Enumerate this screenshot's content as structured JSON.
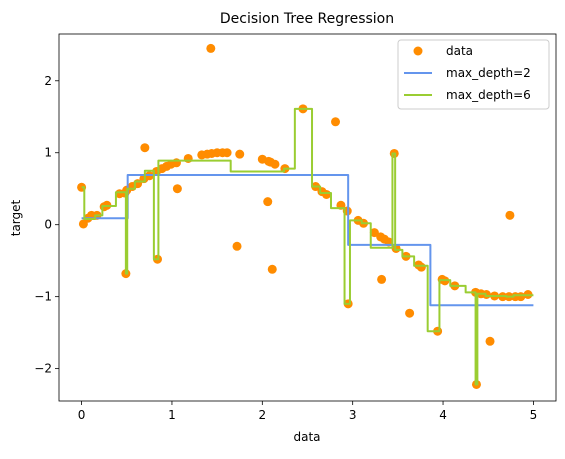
{
  "chart_data": {
    "type": "scatter",
    "title": "Decision Tree Regression",
    "xlabel": "data",
    "ylabel": "target",
    "xlim": [
      -0.25,
      5.25
    ],
    "ylim": [
      -2.45,
      2.65
    ],
    "xticks": [
      0,
      1,
      2,
      3,
      4,
      5
    ],
    "yticks": [
      -2,
      -1,
      0,
      1,
      2
    ],
    "grid": false,
    "legend_position": "top-right",
    "colors": {
      "data": "#ff8c00",
      "depth2": "#6495ed",
      "depth6": "#9acd32"
    },
    "legend": [
      "data",
      "max_depth=2",
      "max_depth=6"
    ],
    "scatter": {
      "name": "data",
      "points": [
        [
          0.0,
          0.52
        ],
        [
          0.02,
          0.01
        ],
        [
          0.07,
          0.09
        ],
        [
          0.11,
          0.13
        ],
        [
          0.17,
          0.13
        ],
        [
          0.25,
          0.25
        ],
        [
          0.28,
          0.27
        ],
        [
          0.42,
          0.43
        ],
        [
          0.48,
          0.44
        ],
        [
          0.49,
          -0.68
        ],
        [
          0.5,
          0.48
        ],
        [
          0.56,
          0.53
        ],
        [
          0.62,
          0.57
        ],
        [
          0.69,
          0.64
        ],
        [
          0.7,
          1.07
        ],
        [
          0.75,
          0.68
        ],
        [
          0.83,
          0.74
        ],
        [
          0.84,
          -0.48
        ],
        [
          0.89,
          0.78
        ],
        [
          0.94,
          0.81
        ],
        [
          0.99,
          0.84
        ],
        [
          1.05,
          0.86
        ],
        [
          1.06,
          0.5
        ],
        [
          1.18,
          0.92
        ],
        [
          1.33,
          0.97
        ],
        [
          1.39,
          0.98
        ],
        [
          1.43,
          2.45
        ],
        [
          1.44,
          0.99
        ],
        [
          1.5,
          1.0
        ],
        [
          1.56,
          1.0
        ],
        [
          1.61,
          1.0
        ],
        [
          1.72,
          -0.3
        ],
        [
          1.75,
          0.98
        ],
        [
          2.0,
          0.91
        ],
        [
          2.06,
          0.32
        ],
        [
          2.07,
          0.88
        ],
        [
          2.09,
          0.87
        ],
        [
          2.11,
          -0.62
        ],
        [
          2.14,
          0.84
        ],
        [
          2.25,
          0.78
        ],
        [
          2.45,
          1.61
        ],
        [
          2.59,
          0.53
        ],
        [
          2.66,
          0.46
        ],
        [
          2.71,
          0.42
        ],
        [
          2.81,
          1.43
        ],
        [
          2.87,
          0.27
        ],
        [
          2.94,
          0.19
        ],
        [
          2.95,
          -1.1
        ],
        [
          3.06,
          0.06
        ],
        [
          3.12,
          0.02
        ],
        [
          3.24,
          -0.11
        ],
        [
          3.31,
          -0.17
        ],
        [
          3.32,
          -0.76
        ],
        [
          3.35,
          -0.2
        ],
        [
          3.4,
          -0.24
        ],
        [
          3.46,
          0.99
        ],
        [
          3.48,
          -0.33
        ],
        [
          3.59,
          -0.44
        ],
        [
          3.63,
          -1.23
        ],
        [
          3.73,
          -0.56
        ],
        [
          3.76,
          -0.59
        ],
        [
          3.94,
          -1.48
        ],
        [
          3.99,
          -0.76
        ],
        [
          4.02,
          -0.78
        ],
        [
          4.13,
          -0.85
        ],
        [
          4.36,
          -0.94
        ],
        [
          4.37,
          -2.22
        ],
        [
          4.42,
          -0.96
        ],
        [
          4.48,
          -0.97
        ],
        [
          4.52,
          -1.62
        ],
        [
          4.57,
          -0.99
        ],
        [
          4.66,
          -1.0
        ],
        [
          4.73,
          -1.0
        ],
        [
          4.74,
          0.13
        ],
        [
          4.8,
          -1.0
        ],
        [
          4.86,
          -1.0
        ],
        [
          4.94,
          -0.97
        ]
      ]
    },
    "series": [
      {
        "name": "max_depth=2",
        "steps": [
          [
            0.0,
            0.51,
            0.09
          ],
          [
            0.51,
            2.95,
            0.69
          ],
          [
            2.95,
            3.86,
            -0.28
          ],
          [
            3.86,
            5.0,
            -1.12
          ]
        ]
      },
      {
        "name": "max_depth=6",
        "steps": [
          [
            0.0,
            0.03,
            0.52
          ],
          [
            0.03,
            0.15,
            0.08
          ],
          [
            0.15,
            0.23,
            0.13
          ],
          [
            0.23,
            0.38,
            0.26
          ],
          [
            0.38,
            0.49,
            0.45
          ],
          [
            0.49,
            0.505,
            -0.68
          ],
          [
            0.505,
            0.59,
            0.5
          ],
          [
            0.59,
            0.7,
            0.6
          ],
          [
            0.7,
            0.8,
            0.75
          ],
          [
            0.8,
            0.85,
            -0.48
          ],
          [
            0.85,
            1.65,
            0.89
          ],
          [
            1.65,
            2.24,
            0.74
          ],
          [
            2.24,
            2.36,
            0.78
          ],
          [
            2.36,
            2.55,
            1.61
          ],
          [
            2.55,
            2.64,
            0.53
          ],
          [
            2.64,
            2.76,
            0.44
          ],
          [
            2.76,
            2.91,
            0.23
          ],
          [
            2.91,
            2.97,
            -1.1
          ],
          [
            2.97,
            3.1,
            0.06
          ],
          [
            3.1,
            3.2,
            0.02
          ],
          [
            3.2,
            3.44,
            -0.32
          ],
          [
            3.44,
            3.47,
            0.99
          ],
          [
            3.47,
            3.55,
            -0.35
          ],
          [
            3.55,
            3.68,
            -0.44
          ],
          [
            3.68,
            3.83,
            -0.57
          ],
          [
            3.83,
            3.96,
            -1.48
          ],
          [
            3.96,
            4.08,
            -0.77
          ],
          [
            4.08,
            4.25,
            -0.85
          ],
          [
            4.25,
            4.36,
            -0.94
          ],
          [
            4.36,
            4.38,
            -2.22
          ],
          [
            4.38,
            4.47,
            -0.96
          ],
          [
            4.47,
            4.7,
            -0.99
          ],
          [
            4.7,
            4.78,
            -1.0
          ],
          [
            4.78,
            5.0,
            -0.98
          ]
        ]
      }
    ]
  }
}
